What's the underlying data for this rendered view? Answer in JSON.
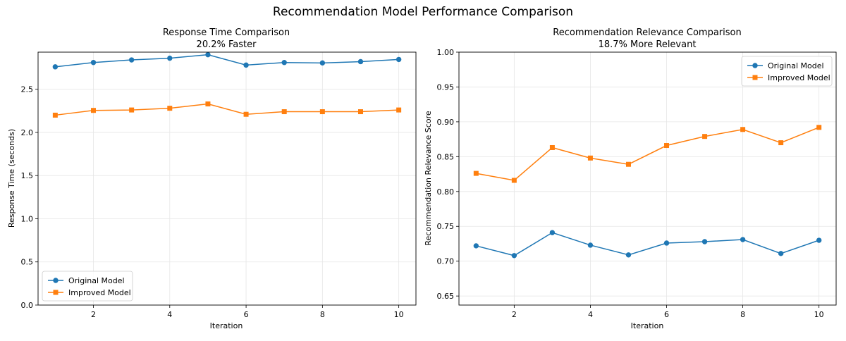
{
  "figure": {
    "suptitle": "Recommendation Model Performance Comparison"
  },
  "colors": {
    "original": "#1f77b4",
    "improved": "#ff7f0e",
    "grid": "#e6e6e6"
  },
  "chart_data": [
    {
      "type": "line",
      "title": "Response Time Comparison",
      "subtitle": "20.2% Faster",
      "xlabel": "Iteration",
      "ylabel": "Response Time (seconds)",
      "xlim": [
        0.55,
        10.45
      ],
      "ylim": [
        0,
        2.93
      ],
      "xticks": [
        2,
        4,
        6,
        8,
        10
      ],
      "yticks": [
        0.0,
        0.5,
        1.0,
        1.5,
        2.0,
        2.5
      ],
      "ytick_labels": [
        "0.0",
        "0.5",
        "1.0",
        "1.5",
        "2.0",
        "2.5"
      ],
      "grid": true,
      "legend_position": "lower-left",
      "x": [
        1,
        2,
        3,
        4,
        5,
        6,
        7,
        8,
        9,
        10
      ],
      "series": [
        {
          "name": "Original Model",
          "marker": "circle",
          "values": [
            2.76,
            2.81,
            2.84,
            2.86,
            2.9,
            2.78,
            2.81,
            2.805,
            2.82,
            2.845
          ]
        },
        {
          "name": "Improved Model",
          "marker": "square",
          "values": [
            2.2,
            2.255,
            2.26,
            2.28,
            2.33,
            2.21,
            2.24,
            2.24,
            2.24,
            2.26
          ]
        }
      ]
    },
    {
      "type": "line",
      "title": "Recommendation Relevance Comparison",
      "subtitle": "18.7% More Relevant",
      "xlabel": "Iteration",
      "ylabel": "Recommendation Relevance Score",
      "xlim": [
        0.55,
        10.45
      ],
      "ylim": [
        0.637,
        1.0
      ],
      "xticks": [
        2,
        4,
        6,
        8,
        10
      ],
      "yticks": [
        0.65,
        0.7,
        0.75,
        0.8,
        0.85,
        0.9,
        0.95,
        1.0
      ],
      "ytick_labels": [
        "0.65",
        "0.70",
        "0.75",
        "0.80",
        "0.85",
        "0.90",
        "0.95",
        "1.00"
      ],
      "grid": true,
      "legend_position": "upper-right",
      "x": [
        1,
        2,
        3,
        4,
        5,
        6,
        7,
        8,
        9,
        10
      ],
      "series": [
        {
          "name": "Original Model",
          "marker": "circle",
          "values": [
            0.722,
            0.708,
            0.741,
            0.723,
            0.709,
            0.726,
            0.728,
            0.731,
            0.711,
            0.73
          ]
        },
        {
          "name": "Improved Model",
          "marker": "square",
          "values": [
            0.826,
            0.816,
            0.863,
            0.848,
            0.839,
            0.866,
            0.879,
            0.889,
            0.87,
            0.892
          ]
        }
      ]
    }
  ]
}
